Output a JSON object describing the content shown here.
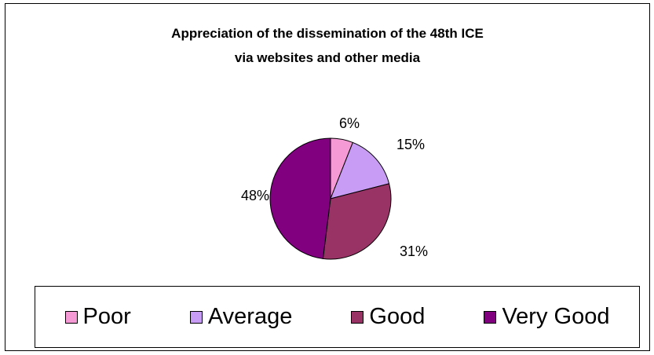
{
  "chart_data": {
    "type": "pie",
    "title_lines": [
      "Appreciation of the dissemination of the 48th ICE",
      "via websites and other media"
    ],
    "slices": [
      {
        "label": "Poor",
        "value": 6,
        "value_label": "6%",
        "color": "#f59ad5"
      },
      {
        "label": "Average",
        "value": 15,
        "value_label": "15%",
        "color": "#c89bf5"
      },
      {
        "label": "Good",
        "value": 31,
        "value_label": "31%",
        "color": "#993366"
      },
      {
        "label": "Very Good",
        "value": 48,
        "value_label": "48%",
        "color": "#800080"
      }
    ],
    "legend_position": "bottom"
  }
}
